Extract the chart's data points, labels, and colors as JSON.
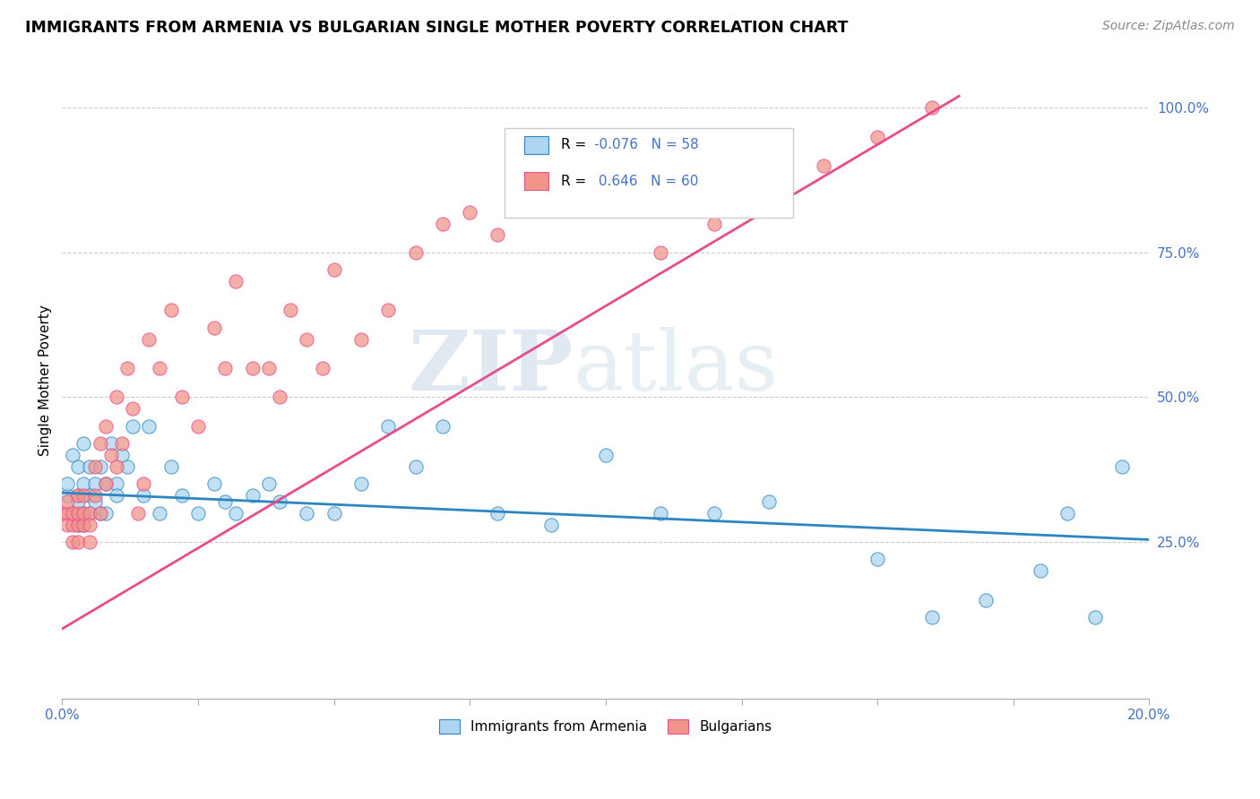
{
  "title": "IMMIGRANTS FROM ARMENIA VS BULGARIAN SINGLE MOTHER POVERTY CORRELATION CHART",
  "source": "Source: ZipAtlas.com",
  "ylabel": "Single Mother Poverty",
  "xlim": [
    0.0,
    0.2
  ],
  "ylim": [
    -0.02,
    1.08
  ],
  "xtick_positions": [
    0.0,
    0.025,
    0.05,
    0.075,
    0.1,
    0.125,
    0.15,
    0.175,
    0.2
  ],
  "xticklabels": [
    "0.0%",
    "",
    "",
    "",
    "",
    "",
    "",
    "",
    "20.0%"
  ],
  "ytick_positions": [
    0.25,
    0.5,
    0.75,
    1.0
  ],
  "ytick_labels": [
    "25.0%",
    "50.0%",
    "75.0%",
    "100.0%"
  ],
  "color_blue": "#AED6F1",
  "color_pink": "#F1948A",
  "trendline_blue": "#2E86C1",
  "trendline_pink": "#E74C8B",
  "R_blue": -0.076,
  "N_blue": 58,
  "R_pink": 0.646,
  "N_pink": 60,
  "watermark_zip": "ZIP",
  "watermark_atlas": "atlas",
  "legend_blue": "Immigrants from Armenia",
  "legend_pink": "Bulgarians",
  "blue_x": [
    0.001,
    0.001,
    0.002,
    0.002,
    0.003,
    0.003,
    0.003,
    0.003,
    0.004,
    0.004,
    0.004,
    0.004,
    0.005,
    0.005,
    0.005,
    0.006,
    0.006,
    0.007,
    0.007,
    0.008,
    0.008,
    0.009,
    0.01,
    0.01,
    0.011,
    0.012,
    0.013,
    0.015,
    0.016,
    0.018,
    0.02,
    0.022,
    0.025,
    0.028,
    0.03,
    0.032,
    0.035,
    0.038,
    0.04,
    0.045,
    0.05,
    0.055,
    0.06,
    0.065,
    0.07,
    0.08,
    0.09,
    0.1,
    0.11,
    0.12,
    0.13,
    0.15,
    0.16,
    0.17,
    0.18,
    0.185,
    0.19,
    0.195
  ],
  "blue_y": [
    0.33,
    0.35,
    0.3,
    0.4,
    0.28,
    0.33,
    0.38,
    0.32,
    0.3,
    0.35,
    0.42,
    0.28,
    0.33,
    0.3,
    0.38,
    0.32,
    0.35,
    0.3,
    0.38,
    0.35,
    0.3,
    0.42,
    0.35,
    0.33,
    0.4,
    0.38,
    0.45,
    0.33,
    0.45,
    0.3,
    0.38,
    0.33,
    0.3,
    0.35,
    0.32,
    0.3,
    0.33,
    0.35,
    0.32,
    0.3,
    0.3,
    0.35,
    0.45,
    0.38,
    0.45,
    0.3,
    0.28,
    0.4,
    0.3,
    0.3,
    0.32,
    0.22,
    0.12,
    0.15,
    0.2,
    0.3,
    0.12,
    0.38
  ],
  "pink_x": [
    0.0005,
    0.001,
    0.001,
    0.001,
    0.002,
    0.002,
    0.002,
    0.003,
    0.003,
    0.003,
    0.003,
    0.004,
    0.004,
    0.004,
    0.005,
    0.005,
    0.005,
    0.006,
    0.006,
    0.007,
    0.007,
    0.008,
    0.008,
    0.009,
    0.01,
    0.01,
    0.011,
    0.012,
    0.013,
    0.014,
    0.015,
    0.016,
    0.018,
    0.02,
    0.022,
    0.025,
    0.028,
    0.03,
    0.032,
    0.035,
    0.038,
    0.04,
    0.042,
    0.045,
    0.048,
    0.05,
    0.055,
    0.06,
    0.065,
    0.07,
    0.075,
    0.08,
    0.09,
    0.1,
    0.11,
    0.12,
    0.13,
    0.14,
    0.15,
    0.16
  ],
  "pink_y": [
    0.3,
    0.3,
    0.28,
    0.32,
    0.28,
    0.3,
    0.25,
    0.28,
    0.3,
    0.33,
    0.25,
    0.28,
    0.3,
    0.33,
    0.3,
    0.28,
    0.25,
    0.33,
    0.38,
    0.3,
    0.42,
    0.35,
    0.45,
    0.4,
    0.38,
    0.5,
    0.42,
    0.55,
    0.48,
    0.3,
    0.35,
    0.6,
    0.55,
    0.65,
    0.5,
    0.45,
    0.62,
    0.55,
    0.7,
    0.55,
    0.55,
    0.5,
    0.65,
    0.6,
    0.55,
    0.72,
    0.6,
    0.65,
    0.75,
    0.8,
    0.82,
    0.78,
    0.85,
    0.9,
    0.75,
    0.8,
    0.85,
    0.9,
    0.95,
    1.0
  ]
}
